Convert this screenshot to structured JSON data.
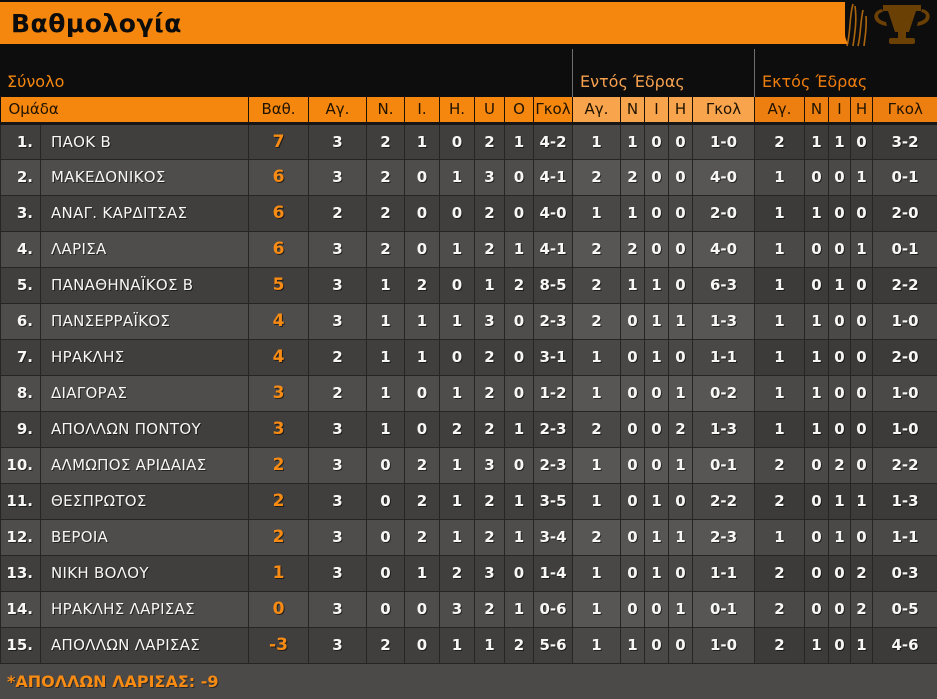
{
  "header": {
    "title": "Βαθμολογία",
    "trophy_icon": "trophy-icon"
  },
  "sections": {
    "total": "Σύνολο",
    "home": "Εντός Έδρας",
    "away": "Εκτός Έδρας"
  },
  "columns": {
    "team": "Ομάδα",
    "points": "Βαθ.",
    "total": [
      "Αγ.",
      "Ν.",
      "Ι.",
      "Η.",
      "U",
      "O",
      "Γκολ"
    ],
    "home": [
      "Αγ.",
      "Ν",
      "Ι",
      "Η",
      "Γκολ"
    ],
    "away": [
      "Αγ.",
      "Ν",
      "Ι",
      "Η",
      "Γκολ"
    ]
  },
  "colors": {
    "accent_orange": "#f5870f",
    "home_header_tint": "#f8a44c",
    "away_header_tint": "#ed7f10",
    "points_text": "#f78b13",
    "row_dark": "#403f3e",
    "row_light": "#4e4d4b"
  },
  "rows": [
    {
      "pos": "1.",
      "team": "ΠΑΟΚ Β",
      "pts": "7",
      "total": [
        "3",
        "2",
        "1",
        "0",
        "2",
        "1",
        "4-2"
      ],
      "home": [
        "1",
        "1",
        "0",
        "0",
        "1-0"
      ],
      "away": [
        "2",
        "1",
        "1",
        "0",
        "3-2"
      ]
    },
    {
      "pos": "2.",
      "team": "ΜΑΚΕΔΟΝΙΚΟΣ",
      "pts": "6",
      "total": [
        "3",
        "2",
        "0",
        "1",
        "3",
        "0",
        "4-1"
      ],
      "home": [
        "2",
        "2",
        "0",
        "0",
        "4-0"
      ],
      "away": [
        "1",
        "0",
        "0",
        "1",
        "0-1"
      ]
    },
    {
      "pos": "3.",
      "team": "ΑΝΑΓ. ΚΑΡΔΙΤΣΑΣ",
      "pts": "6",
      "total": [
        "2",
        "2",
        "0",
        "0",
        "2",
        "0",
        "4-0"
      ],
      "home": [
        "1",
        "1",
        "0",
        "0",
        "2-0"
      ],
      "away": [
        "1",
        "1",
        "0",
        "0",
        "2-0"
      ]
    },
    {
      "pos": "4.",
      "team": "ΛΑΡΙΣΑ",
      "pts": "6",
      "total": [
        "3",
        "2",
        "0",
        "1",
        "2",
        "1",
        "4-1"
      ],
      "home": [
        "2",
        "2",
        "0",
        "0",
        "4-0"
      ],
      "away": [
        "1",
        "0",
        "0",
        "1",
        "0-1"
      ]
    },
    {
      "pos": "5.",
      "team": "ΠΑΝΑΘΗΝΑΪΚΟΣ Β",
      "pts": "5",
      "total": [
        "3",
        "1",
        "2",
        "0",
        "1",
        "2",
        "8-5"
      ],
      "home": [
        "2",
        "1",
        "1",
        "0",
        "6-3"
      ],
      "away": [
        "1",
        "0",
        "1",
        "0",
        "2-2"
      ]
    },
    {
      "pos": "6.",
      "team": "ΠΑΝΣΕΡΡΑΪΚΟΣ",
      "pts": "4",
      "total": [
        "3",
        "1",
        "1",
        "1",
        "3",
        "0",
        "2-3"
      ],
      "home": [
        "2",
        "0",
        "1",
        "1",
        "1-3"
      ],
      "away": [
        "1",
        "1",
        "0",
        "0",
        "1-0"
      ]
    },
    {
      "pos": "7.",
      "team": "ΗΡΑΚΛΗΣ",
      "pts": "4",
      "total": [
        "2",
        "1",
        "1",
        "0",
        "2",
        "0",
        "3-1"
      ],
      "home": [
        "1",
        "0",
        "1",
        "0",
        "1-1"
      ],
      "away": [
        "1",
        "1",
        "0",
        "0",
        "2-0"
      ]
    },
    {
      "pos": "8.",
      "team": "ΔΙΑΓΟΡΑΣ",
      "pts": "3",
      "total": [
        "2",
        "1",
        "0",
        "1",
        "2",
        "0",
        "1-2"
      ],
      "home": [
        "1",
        "0",
        "0",
        "1",
        "0-2"
      ],
      "away": [
        "1",
        "1",
        "0",
        "0",
        "1-0"
      ]
    },
    {
      "pos": "9.",
      "team": "ΑΠΟΛΛΩΝ ΠΟΝΤΟΥ",
      "pts": "3",
      "total": [
        "3",
        "1",
        "0",
        "2",
        "2",
        "1",
        "2-3"
      ],
      "home": [
        "2",
        "0",
        "0",
        "2",
        "1-3"
      ],
      "away": [
        "1",
        "1",
        "0",
        "0",
        "1-0"
      ]
    },
    {
      "pos": "10.",
      "team": "ΑΛΜΩΠΟΣ ΑΡΙΔΑΙΑΣ",
      "pts": "2",
      "total": [
        "3",
        "0",
        "2",
        "1",
        "3",
        "0",
        "2-3"
      ],
      "home": [
        "1",
        "0",
        "0",
        "1",
        "0-1"
      ],
      "away": [
        "2",
        "0",
        "2",
        "0",
        "2-2"
      ]
    },
    {
      "pos": "11.",
      "team": "ΘΕΣΠΡΩΤΟΣ",
      "pts": "2",
      "total": [
        "3",
        "0",
        "2",
        "1",
        "2",
        "1",
        "3-5"
      ],
      "home": [
        "1",
        "0",
        "1",
        "0",
        "2-2"
      ],
      "away": [
        "2",
        "0",
        "1",
        "1",
        "1-3"
      ]
    },
    {
      "pos": "12.",
      "team": "ΒΕΡΟΙΑ",
      "pts": "2",
      "total": [
        "3",
        "0",
        "2",
        "1",
        "2",
        "1",
        "3-4"
      ],
      "home": [
        "2",
        "0",
        "1",
        "1",
        "2-3"
      ],
      "away": [
        "1",
        "0",
        "1",
        "0",
        "1-1"
      ]
    },
    {
      "pos": "13.",
      "team": "ΝΙΚΗ ΒΟΛΟΥ",
      "pts": "1",
      "total": [
        "3",
        "0",
        "1",
        "2",
        "3",
        "0",
        "1-4"
      ],
      "home": [
        "1",
        "0",
        "1",
        "0",
        "1-1"
      ],
      "away": [
        "2",
        "0",
        "0",
        "2",
        "0-3"
      ]
    },
    {
      "pos": "14.",
      "team": "ΗΡΑΚΛΗΣ ΛΑΡΙΣΑΣ",
      "pts": "0",
      "total": [
        "3",
        "0",
        "0",
        "3",
        "2",
        "1",
        "0-6"
      ],
      "home": [
        "1",
        "0",
        "0",
        "1",
        "0-1"
      ],
      "away": [
        "2",
        "0",
        "0",
        "2",
        "0-5"
      ]
    },
    {
      "pos": "15.",
      "team": "ΑΠΟΛΛΩΝ ΛΑΡΙΣΑΣ",
      "pts": "-3",
      "total": [
        "3",
        "2",
        "0",
        "1",
        "1",
        "2",
        "5-6"
      ],
      "home": [
        "1",
        "1",
        "0",
        "0",
        "1-0"
      ],
      "away": [
        "2",
        "1",
        "0",
        "1",
        "4-6"
      ]
    }
  ],
  "footnote": "*ΑΠΟΛΛΩΝ ΛΑΡΙΣΑΣ: -9"
}
